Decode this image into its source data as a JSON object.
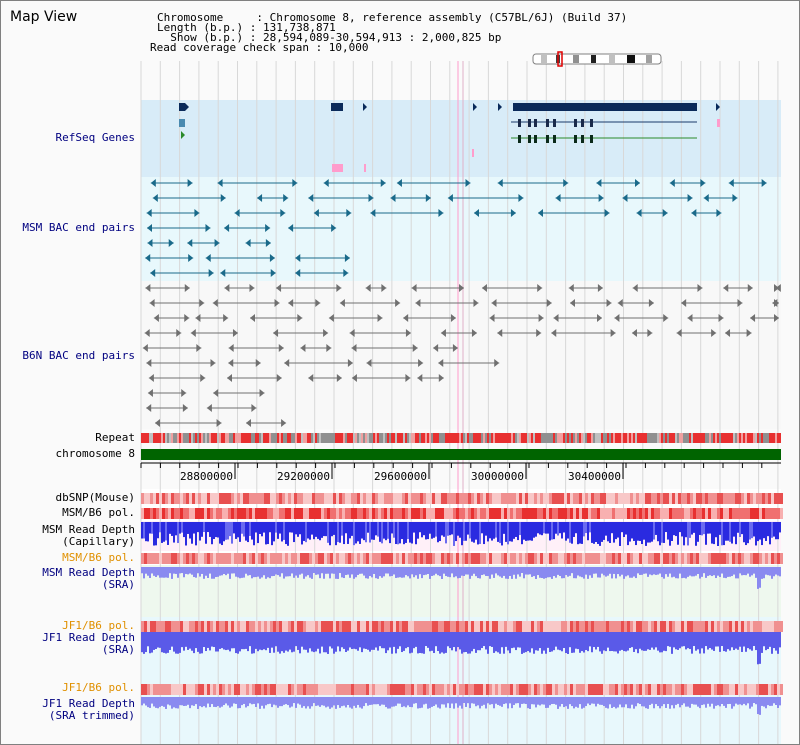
{
  "panel_title": "Map View",
  "header": {
    "line1": "Chromosome     : Chromosome 8, reference assembly (C57BL/6J) (Build 37)",
    "line2": "Length (b.p.) : 131,738,871",
    "line3": "  Show (b.p.) : 28,594,089-30,594,913 : 2,000,825 bp",
    "line4": "Read coverage check span : 10,000"
  },
  "tracks": {
    "refseq": "RefSeq Genes",
    "msm_bac": "MSM BAC end pairs",
    "b6n_bac": "B6N BAC end pairs",
    "repeat": "Repeat",
    "chromosome": "chromosome 8",
    "dbsnp": "dbSNP(Mouse)",
    "msm_b6_pol": "MSM/B6 pol.",
    "msm_read_depth_cap_1": "MSM Read Depth",
    "msm_read_depth_cap_2": "(Capillary)",
    "msm_b6_pol_2": "MSM/B6 pol.",
    "msm_read_depth_sra_1": "MSM Read Depth",
    "msm_read_depth_sra_2": "(SRA)",
    "jf1_b6_pol": "JF1/B6 pol.",
    "jf1_read_depth_sra_1": "JF1 Read Depth",
    "jf1_read_depth_sra_2": "(SRA)",
    "jf1_b6_pol_2": "JF1/B6 pol.",
    "jf1_read_depth_trim_1": "JF1 Read Depth",
    "jf1_read_depth_trim_2": "(SRA trimmed)"
  },
  "axis": {
    "ticks": [
      "28800000",
      "29200000",
      "29600000",
      "30000000",
      "30400000"
    ]
  },
  "colors": {
    "refseq_bg": "#d8ecf8",
    "bac_bg": "#e8f8fc",
    "b6n_bg": "#f8f8f8",
    "chromosome_bar": "#006400",
    "gene_dark": "#0a2a5a",
    "gene_teal": "#2a8a9a",
    "gene_green": "#2a8a2a",
    "msm_line": "#1a6a8a",
    "b6n_line": "#707070",
    "depth_blue": "#2a2ae0",
    "depth_light": "#8a8af0",
    "pol_red": "#e83030",
    "highlight": "#ff9ccc"
  }
}
